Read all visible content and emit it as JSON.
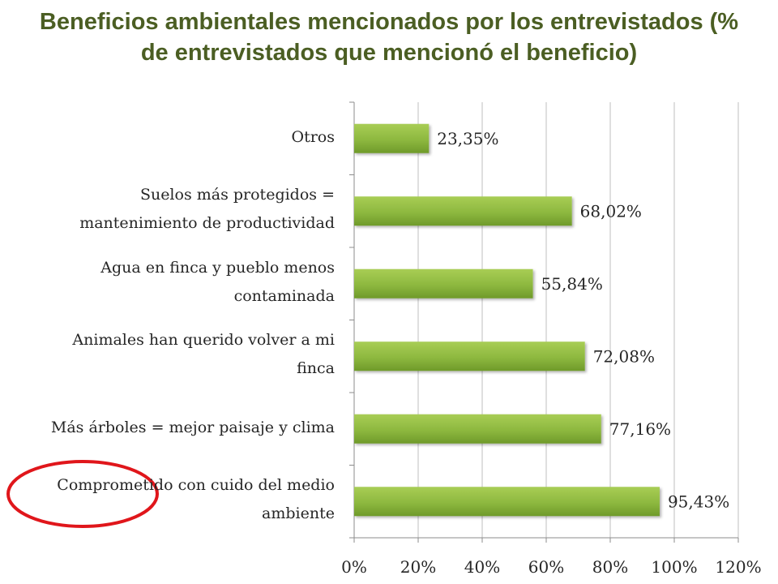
{
  "chart_data": {
    "type": "bar",
    "orientation": "horizontal",
    "title_lines": [
      "Beneficios ambientales mencionados por los entrevistados (%",
      "de entrevistados que mencionó el beneficio)"
    ],
    "categories": [
      {
        "lines": [
          "Otros"
        ]
      },
      {
        "lines": [
          "Suelos más protegidos =",
          "mantenimiento de productividad"
        ]
      },
      {
        "lines": [
          "Agua en finca y pueblo menos",
          "contaminada"
        ]
      },
      {
        "lines": [
          "Animales han querido volver a mi",
          "finca"
        ]
      },
      {
        "lines": [
          "Más árboles = mejor paisaje y clima"
        ]
      },
      {
        "lines": [
          "Comprometido con cuido del medio",
          "ambiente"
        ]
      }
    ],
    "values": [
      23.35,
      68.02,
      55.84,
      72.08,
      77.16,
      95.43
    ],
    "value_labels": [
      "23,35%",
      "68,02%",
      "55,84%",
      "72,08%",
      "77,16%",
      "95,43%"
    ],
    "xlim": [
      0,
      120
    ],
    "x_ticks": [
      0,
      20,
      40,
      60,
      80,
      100,
      120
    ],
    "x_tick_labels": [
      "0%",
      "20%",
      "40%",
      "60%",
      "80%",
      "100%",
      "120%"
    ],
    "grid": "vertical",
    "legend": "none",
    "highlighted_category_index": 5,
    "colors": {
      "title": "#4b5e23",
      "bar_top": "#a8cd55",
      "bar_bottom": "#6f9a2a",
      "gridline": "#bfbfbf",
      "axis": "#8c8c8c",
      "highlight_circle": "#e0161b"
    }
  }
}
